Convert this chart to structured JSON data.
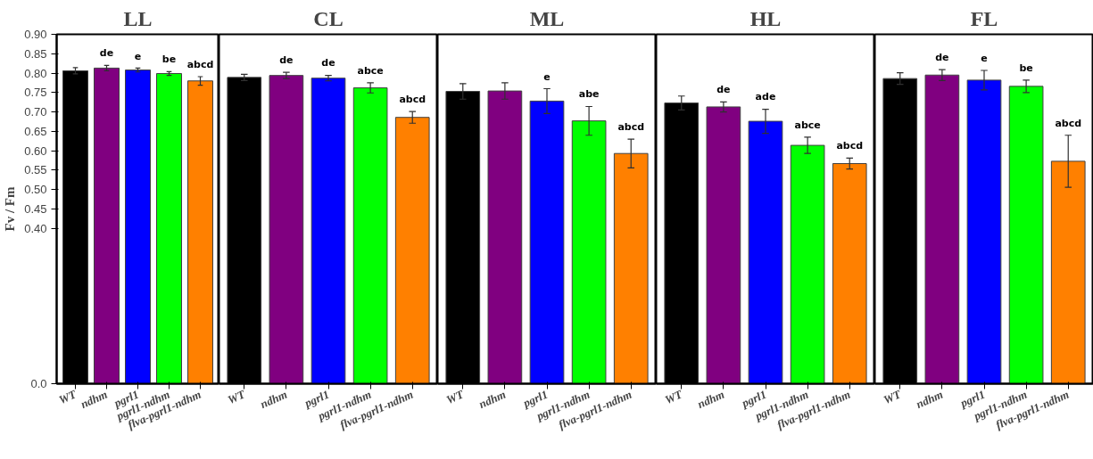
{
  "chart_data": [
    {
      "type": "bar",
      "title": "LL",
      "ylabel": "Fv / Fm",
      "categories": [
        "WT",
        "ndhm",
        "pgrl1",
        "pgrl1-ndhm",
        "flva-pgrl1-ndhm"
      ],
      "values": [
        0.806,
        0.813,
        0.808,
        0.799,
        0.78
      ],
      "errors": [
        0.008,
        0.007,
        0.005,
        0.005,
        0.011
      ],
      "colors": [
        "#000000",
        "#800080",
        "#0000ff",
        "#00ff00",
        "#ff8000"
      ],
      "annotations": [
        "de",
        "e",
        "be",
        "abcd"
      ],
      "ylim": [
        0,
        0.9
      ],
      "yticks": [
        {
          "value": 0,
          "label": "0.0"
        },
        {
          "value": 0.4,
          "label": "0.40"
        },
        0.45,
        {
          "value": 0.5,
          "label": "0.50"
        },
        0.55,
        {
          "value": 0.6,
          "label": "0.60"
        },
        0.65,
        {
          "value": 0.7,
          "label": "0.70"
        },
        0.75,
        {
          "value": 0.8,
          "label": "0.80"
        },
        0.85,
        {
          "value": 0.9,
          "label": "0.90"
        }
      ]
    },
    {
      "type": "bar",
      "title": "CL",
      "categories": [
        "WT",
        "ndhm",
        "pgrl1",
        "pgrl1-ndhm",
        "flva-pgrl1-ndhm"
      ],
      "values": [
        0.789,
        0.794,
        0.787,
        0.762,
        0.686
      ],
      "errors": [
        0.008,
        0.008,
        0.007,
        0.013,
        0.015
      ],
      "colors": [
        "#000000",
        "#800080",
        "#0000ff",
        "#00ff00",
        "#ff8000"
      ],
      "annotations": [
        "de",
        "de",
        "abce",
        "abcd"
      ],
      "ylim": [
        0,
        0.9
      ],
      "tick_labels": "x"
    },
    {
      "type": "bar",
      "title": "ML",
      "categories": [
        "WT",
        "ndhm",
        "pgrl1",
        "pgrl1-ndhm",
        "flva-pgrl1-ndhm"
      ],
      "values": [
        0.753,
        0.754,
        0.728,
        0.677,
        0.593
      ],
      "errors": [
        0.02,
        0.021,
        0.032,
        0.037,
        0.037
      ],
      "colors": [
        "#000000",
        "#800080",
        "#0000ff",
        "#00ff00",
        "#ff8000"
      ],
      "annotations": [
        "e",
        "abe",
        "abcd"
      ],
      "ylim": [
        0,
        0.9
      ],
      "tick_labels": "x"
    },
    {
      "type": "bar",
      "title": "HL",
      "categories": [
        "WT",
        "ndhm",
        "pgrl1",
        "pgrl1-ndhm",
        "flva-pgrl1-ndhm"
      ],
      "values": [
        0.723,
        0.713,
        0.676,
        0.614,
        0.567
      ],
      "errors": [
        0.018,
        0.013,
        0.031,
        0.021,
        0.014
      ],
      "colors": [
        "#000000",
        "#800080",
        "#0000ff",
        "#00ff00",
        "#ff8000"
      ],
      "annotations": [
        "de",
        "ade",
        "abce",
        "abcd"
      ],
      "ylim": [
        0,
        0.9
      ],
      "tick_labels": "x"
    },
    {
      "type": "bar",
      "title": "FL",
      "categories": [
        "WT",
        "ndhm",
        "pgrl1",
        "pgrl1-ndhm",
        "flva-pgrl1-ndhm"
      ],
      "values": [
        0.786,
        0.795,
        0.782,
        0.766,
        0.573
      ],
      "errors": [
        0.015,
        0.014,
        0.025,
        0.016,
        0.067
      ],
      "colors": [
        "#000000",
        "#800080",
        "#0000ff",
        "#00ff00",
        "#ff8000"
      ],
      "annotations": [
        "de",
        "e",
        "be",
        "abcd"
      ],
      "ylim": [
        0,
        0.9
      ],
      "tick_labels": "x"
    }
  ]
}
